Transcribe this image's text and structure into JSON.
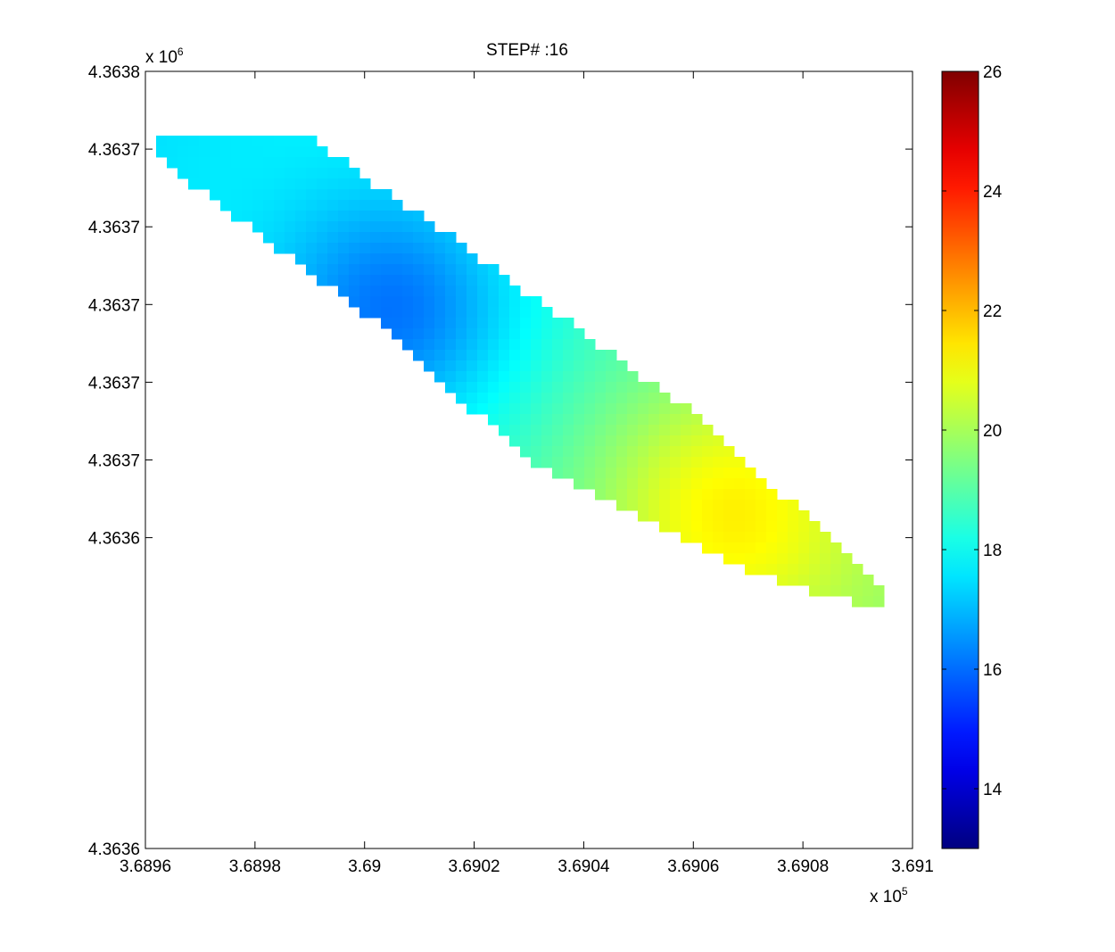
{
  "chart_data": {
    "type": "heatmap",
    "title": "STEP# :16",
    "xlabel": "",
    "ylabel": "",
    "x_exponent_label": "x 10",
    "x_exponent_power": "5",
    "y_exponent_label": "x 10",
    "y_exponent_power": "6",
    "xlim": [
      3.6896,
      3.691
    ],
    "ylim": [
      4.3636,
      4.3638
    ],
    "x_ticks": [
      3.6896,
      3.6898,
      3.69,
      3.6902,
      3.6904,
      3.6906,
      3.6908,
      3.691
    ],
    "x_tick_labels": [
      "3.6896",
      "3.6898",
      "3.69",
      "3.6902",
      "3.6904",
      "3.6906",
      "3.6908",
      "3.691"
    ],
    "y_ticks": [
      4.3638,
      4.36378,
      4.36376,
      4.36374,
      4.36372,
      4.3637,
      4.36368,
      4.3636
    ],
    "y_tick_labels": [
      "4.3638",
      "4.3637",
      "4.3637",
      "4.3637",
      "4.3637",
      "4.3637",
      "4.3636",
      "4.3636"
    ],
    "colorbar": {
      "colormap": "jet",
      "clim": [
        13,
        26
      ],
      "ticks": [
        14,
        16,
        18,
        20,
        22,
        24,
        26
      ],
      "tick_labels": [
        "14",
        "16",
        "18",
        "20",
        "22",
        "24",
        "26"
      ]
    },
    "field": {
      "description_of_extent": "diagonal band from upper-left to lower-right",
      "band_upper_edge": [
        [
          3.68961,
          4.363783
        ],
        [
          3.6899,
          4.363783
        ],
        [
          3.6902,
          4.363753
        ],
        [
          3.6906,
          4.363712
        ],
        [
          3.69095,
          4.363667
        ]
      ],
      "band_lower_edge": [
        [
          3.68961,
          4.363779
        ],
        [
          3.69,
          4.363738
        ],
        [
          3.6903,
          4.3637
        ],
        [
          3.6907,
          4.363671
        ],
        [
          3.69095,
          4.363661
        ]
      ],
      "min_value": 15.7,
      "min_location": [
        3.69006,
        4.363738
      ],
      "max_value": 22.0,
      "max_location": [
        3.69066,
        4.363687
      ],
      "corner_value_top_left": 17.5,
      "corner_value_bottom_right": 19.5
    },
    "grid": false,
    "legend": "none"
  }
}
